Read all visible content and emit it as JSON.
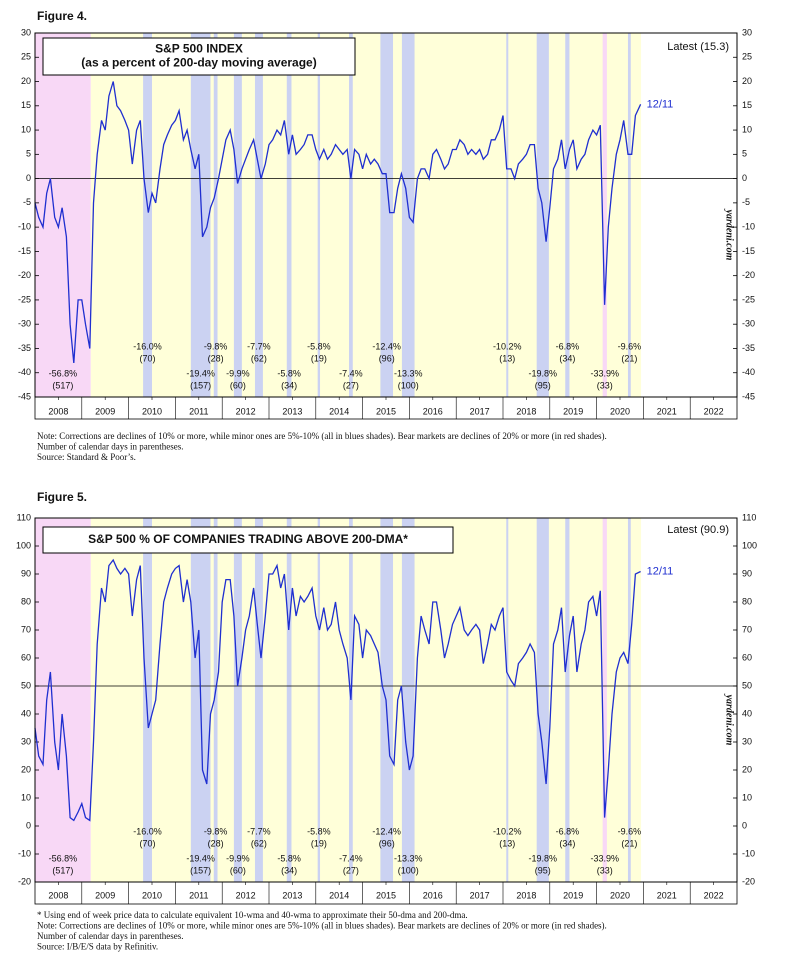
{
  "chart_data": [
    {
      "type": "line",
      "figure": "Figure 4.",
      "title": [
        "S&P 500 INDEX",
        "(as a percent of 200-day moving average)"
      ],
      "latest": "Latest (15.3)",
      "end_label": "12/11",
      "watermark": "yardeni.com",
      "color": "#1f2fd0",
      "hline": 0,
      "xlim": [
        2008,
        2023
      ],
      "ylim": [
        -45,
        30
      ],
      "yticks": [
        -45,
        -40,
        -35,
        -30,
        -25,
        -20,
        -15,
        -10,
        -5,
        0,
        5,
        10,
        15,
        20,
        25,
        30
      ],
      "xticks": [
        {
          "value": 2008.5,
          "label": "2008"
        },
        {
          "value": 2009.5,
          "label": "2009"
        },
        {
          "value": 2010.5,
          "label": "2010"
        },
        {
          "value": 2011.5,
          "label": "2011"
        },
        {
          "value": 2012.5,
          "label": "2012"
        },
        {
          "value": 2013.5,
          "label": "2013"
        },
        {
          "value": 2014.5,
          "label": "2014"
        },
        {
          "value": 2015.5,
          "label": "2015"
        },
        {
          "value": 2016.5,
          "label": "2016"
        },
        {
          "value": 2017.5,
          "label": "2017"
        },
        {
          "value": 2018.5,
          "label": "2018"
        },
        {
          "value": 2019.5,
          "label": "2019"
        },
        {
          "value": 2020.5,
          "label": "2020"
        },
        {
          "value": 2021.5,
          "label": "2021"
        },
        {
          "value": 2022.5,
          "label": "2022"
        }
      ],
      "x": [
        2008.0,
        2008.08,
        2008.17,
        2008.25,
        2008.33,
        2008.42,
        2008.5,
        2008.58,
        2008.67,
        2008.75,
        2008.83,
        2008.92,
        2009.0,
        2009.08,
        2009.17,
        2009.25,
        2009.33,
        2009.42,
        2009.5,
        2009.58,
        2009.67,
        2009.75,
        2009.83,
        2009.92,
        2010.0,
        2010.08,
        2010.17,
        2010.25,
        2010.33,
        2010.42,
        2010.5,
        2010.58,
        2010.67,
        2010.75,
        2010.83,
        2010.92,
        2011.0,
        2011.08,
        2011.17,
        2011.25,
        2011.33,
        2011.42,
        2011.5,
        2011.58,
        2011.67,
        2011.75,
        2011.83,
        2011.92,
        2012.0,
        2012.08,
        2012.17,
        2012.25,
        2012.33,
        2012.42,
        2012.5,
        2012.58,
        2012.67,
        2012.75,
        2012.83,
        2012.92,
        2013.0,
        2013.08,
        2013.17,
        2013.25,
        2013.33,
        2013.42,
        2013.5,
        2013.58,
        2013.67,
        2013.75,
        2013.83,
        2013.92,
        2014.0,
        2014.08,
        2014.17,
        2014.25,
        2014.33,
        2014.42,
        2014.5,
        2014.58,
        2014.67,
        2014.75,
        2014.83,
        2014.92,
        2015.0,
        2015.08,
        2015.17,
        2015.25,
        2015.33,
        2015.42,
        2015.5,
        2015.58,
        2015.67,
        2015.75,
        2015.83,
        2015.92,
        2016.0,
        2016.08,
        2016.17,
        2016.25,
        2016.33,
        2016.42,
        2016.5,
        2016.58,
        2016.67,
        2016.75,
        2016.83,
        2016.92,
        2017.0,
        2017.08,
        2017.17,
        2017.25,
        2017.33,
        2017.42,
        2017.5,
        2017.58,
        2017.67,
        2017.75,
        2017.83,
        2017.92,
        2018.0,
        2018.08,
        2018.17,
        2018.25,
        2018.33,
        2018.42,
        2018.5,
        2018.58,
        2018.67,
        2018.75,
        2018.83,
        2018.92,
        2019.0,
        2019.08,
        2019.17,
        2019.25,
        2019.33,
        2019.42,
        2019.5,
        2019.58,
        2019.67,
        2019.75,
        2019.83,
        2019.92,
        2020.0,
        2020.08,
        2020.17,
        2020.25,
        2020.33,
        2020.42,
        2020.5,
        2020.58,
        2020.67,
        2020.75,
        2020.83,
        2020.94
      ],
      "values": [
        -5,
        -8,
        -10,
        -3,
        0,
        -8,
        -10,
        -6,
        -12,
        -30,
        -38,
        -25,
        -25,
        -30,
        -35,
        -5,
        5,
        12,
        10,
        17,
        20,
        15,
        14,
        12,
        10,
        3,
        10,
        12,
        0,
        -7,
        -3,
        -5,
        2,
        7,
        9,
        11,
        12,
        14,
        8,
        10,
        6,
        2,
        5,
        -12,
        -10,
        -6,
        -4,
        0,
        4,
        8,
        10,
        6,
        -1,
        2,
        4,
        6,
        8,
        4,
        0,
        3,
        7,
        8,
        10,
        9,
        12,
        5,
        9,
        5,
        6,
        7,
        9,
        9,
        6,
        4,
        6,
        4,
        5,
        7,
        6,
        5,
        6,
        0,
        6,
        5,
        2,
        5,
        3,
        4,
        3,
        1,
        1,
        -7,
        -7,
        -2,
        1,
        -2,
        -8,
        -9,
        0,
        2,
        2,
        0,
        5,
        6,
        4,
        2,
        3,
        6,
        6,
        8,
        7,
        5,
        6,
        5,
        6,
        4,
        5,
        8,
        8,
        10,
        13,
        2,
        2,
        0,
        3,
        4,
        5,
        7,
        7,
        -2,
        -5,
        -13,
        -6,
        2,
        4,
        8,
        2,
        6,
        8,
        2,
        4,
        5,
        8,
        10,
        9,
        11,
        -26,
        -10,
        -2,
        5,
        8,
        12,
        5,
        5,
        13,
        15.3
      ],
      "notes": [
        "Note: Corrections are declines of 10% or more, while minor ones are 5%-10% (all in blues shades). Bear markets are declines of 20% or more (in red shades).",
        "Number of calendar days in parentheses.",
        "Source: Standard & Poor’s."
      ]
    },
    {
      "type": "line",
      "figure": "Figure 5.",
      "title": [
        "S&P 500 % OF COMPANIES TRADING ABOVE 200-DMA*"
      ],
      "latest": "Latest (90.9)",
      "end_label": "12/11",
      "watermark": "yardeni.com",
      "color": "#1f2fd0",
      "hline": 50,
      "xlim": [
        2008,
        2023
      ],
      "ylim": [
        -20,
        110
      ],
      "yticks": [
        -20,
        -10,
        0,
        10,
        20,
        30,
        40,
        50,
        60,
        70,
        80,
        90,
        100,
        110
      ],
      "xticks": [
        {
          "value": 2008.5,
          "label": "2008"
        },
        {
          "value": 2009.5,
          "label": "2009"
        },
        {
          "value": 2010.5,
          "label": "2010"
        },
        {
          "value": 2011.5,
          "label": "2011"
        },
        {
          "value": 2012.5,
          "label": "2012"
        },
        {
          "value": 2013.5,
          "label": "2013"
        },
        {
          "value": 2014.5,
          "label": "2014"
        },
        {
          "value": 2015.5,
          "label": "2015"
        },
        {
          "value": 2016.5,
          "label": "2016"
        },
        {
          "value": 2017.5,
          "label": "2017"
        },
        {
          "value": 2018.5,
          "label": "2018"
        },
        {
          "value": 2019.5,
          "label": "2019"
        },
        {
          "value": 2020.5,
          "label": "2020"
        },
        {
          "value": 2021.5,
          "label": "2021"
        },
        {
          "value": 2022.5,
          "label": "2022"
        }
      ],
      "x": [
        2008.0,
        2008.08,
        2008.17,
        2008.25,
        2008.33,
        2008.42,
        2008.5,
        2008.58,
        2008.67,
        2008.75,
        2008.83,
        2008.92,
        2009.0,
        2009.08,
        2009.17,
        2009.25,
        2009.33,
        2009.42,
        2009.5,
        2009.58,
        2009.67,
        2009.75,
        2009.83,
        2009.92,
        2010.0,
        2010.08,
        2010.17,
        2010.25,
        2010.33,
        2010.42,
        2010.5,
        2010.58,
        2010.67,
        2010.75,
        2010.83,
        2010.92,
        2011.0,
        2011.08,
        2011.17,
        2011.25,
        2011.33,
        2011.42,
        2011.5,
        2011.58,
        2011.67,
        2011.75,
        2011.83,
        2011.92,
        2012.0,
        2012.08,
        2012.17,
        2012.25,
        2012.33,
        2012.42,
        2012.5,
        2012.58,
        2012.67,
        2012.75,
        2012.83,
        2012.92,
        2013.0,
        2013.08,
        2013.17,
        2013.25,
        2013.33,
        2013.42,
        2013.5,
        2013.58,
        2013.67,
        2013.75,
        2013.83,
        2013.92,
        2014.0,
        2014.08,
        2014.17,
        2014.25,
        2014.33,
        2014.42,
        2014.5,
        2014.58,
        2014.67,
        2014.75,
        2014.83,
        2014.92,
        2015.0,
        2015.08,
        2015.17,
        2015.25,
        2015.33,
        2015.42,
        2015.5,
        2015.58,
        2015.67,
        2015.75,
        2015.83,
        2015.92,
        2016.0,
        2016.08,
        2016.17,
        2016.25,
        2016.33,
        2016.42,
        2016.5,
        2016.58,
        2016.67,
        2016.75,
        2016.83,
        2016.92,
        2017.0,
        2017.08,
        2017.17,
        2017.25,
        2017.33,
        2017.42,
        2017.5,
        2017.58,
        2017.67,
        2017.75,
        2017.83,
        2017.92,
        2018.0,
        2018.08,
        2018.17,
        2018.25,
        2018.33,
        2018.42,
        2018.5,
        2018.58,
        2018.67,
        2018.75,
        2018.83,
        2018.92,
        2019.0,
        2019.08,
        2019.17,
        2019.25,
        2019.33,
        2019.42,
        2019.5,
        2019.58,
        2019.67,
        2019.75,
        2019.83,
        2019.92,
        2020.0,
        2020.08,
        2020.17,
        2020.25,
        2020.33,
        2020.42,
        2020.5,
        2020.58,
        2020.67,
        2020.75,
        2020.83,
        2020.94
      ],
      "values": [
        35,
        25,
        22,
        45,
        55,
        30,
        20,
        40,
        25,
        3,
        2,
        5,
        8,
        3,
        2,
        30,
        65,
        85,
        80,
        93,
        95,
        92,
        90,
        92,
        90,
        75,
        88,
        93,
        60,
        35,
        40,
        45,
        65,
        80,
        85,
        90,
        92,
        93,
        80,
        88,
        80,
        60,
        70,
        20,
        15,
        40,
        45,
        55,
        80,
        88,
        88,
        75,
        50,
        60,
        70,
        75,
        85,
        72,
        60,
        75,
        90,
        90,
        93,
        85,
        90,
        70,
        85,
        75,
        82,
        80,
        82,
        85,
        75,
        70,
        78,
        70,
        72,
        80,
        70,
        65,
        60,
        45,
        75,
        72,
        60,
        70,
        68,
        65,
        62,
        50,
        45,
        25,
        22,
        45,
        50,
        30,
        20,
        25,
        60,
        75,
        70,
        65,
        80,
        80,
        70,
        60,
        65,
        72,
        75,
        78,
        70,
        68,
        70,
        72,
        70,
        58,
        65,
        72,
        70,
        75,
        78,
        55,
        52,
        50,
        58,
        60,
        62,
        65,
        62,
        40,
        30,
        15,
        35,
        65,
        70,
        78,
        55,
        68,
        75,
        55,
        65,
        70,
        80,
        82,
        75,
        84,
        3,
        20,
        40,
        55,
        60,
        62,
        58,
        72,
        90,
        90.9
      ],
      "notes": [
        "*  Using end of week price data to calculate equivalent 10-wma and 40-wma to approximate their 50-dma and 200-dma.",
        "Note: Corrections are declines of 10% or more, while minor ones are 5%-10% (all in blues shades). Bear markets are declines of 20% or more (in red shades).",
        "Number of calendar days in parentheses.",
        "Source: I/B/E/S data by Refinitiv."
      ]
    }
  ],
  "bull_market": {
    "start": 2009.19,
    "end": 2020.95
  },
  "regions": [
    {
      "kind": "bear",
      "start": 2008.0,
      "end": 2009.19,
      "label": "-56.8%",
      "days": "(517)"
    },
    {
      "kind": "correction",
      "start": 2010.31,
      "end": 2010.5,
      "label": "-16.0%",
      "days": "(70)"
    },
    {
      "kind": "correction",
      "start": 2011.33,
      "end": 2011.75,
      "label": "-19.4%",
      "days": "(157)"
    },
    {
      "kind": "correction",
      "start": 2011.82,
      "end": 2011.9,
      "label": "-9.8%",
      "days": "(28)"
    },
    {
      "kind": "correction",
      "start": 2012.25,
      "end": 2012.42,
      "label": "-9.9%",
      "days": "(60)"
    },
    {
      "kind": "correction",
      "start": 2012.7,
      "end": 2012.87,
      "label": "-7.7%",
      "days": "(62)"
    },
    {
      "kind": "correction",
      "start": 2013.38,
      "end": 2013.48,
      "label": "-5.8%",
      "days": "(34)"
    },
    {
      "kind": "correction",
      "start": 2014.04,
      "end": 2014.09,
      "label": "-5.8%",
      "days": "(19)"
    },
    {
      "kind": "correction",
      "start": 2014.71,
      "end": 2014.79,
      "label": "-7.4%",
      "days": "(27)"
    },
    {
      "kind": "correction",
      "start": 2015.38,
      "end": 2015.65,
      "label": "-12.4%",
      "days": "(96)"
    },
    {
      "kind": "correction",
      "start": 2015.84,
      "end": 2016.11,
      "label": "-13.3%",
      "days": "(100)"
    },
    {
      "kind": "correction",
      "start": 2018.07,
      "end": 2018.11,
      "label": "-10.2%",
      "days": "(13)"
    },
    {
      "kind": "correction",
      "start": 2018.72,
      "end": 2018.98,
      "label": "-19.8%",
      "days": "(95)"
    },
    {
      "kind": "correction",
      "start": 2019.33,
      "end": 2019.42,
      "label": "-6.8%",
      "days": "(34)"
    },
    {
      "kind": "bear",
      "start": 2020.13,
      "end": 2020.22,
      "label": "-33.9%",
      "days": "(33)"
    },
    {
      "kind": "correction",
      "start": 2020.67,
      "end": 2020.73,
      "label": "-9.6%",
      "days": "(21)"
    }
  ]
}
